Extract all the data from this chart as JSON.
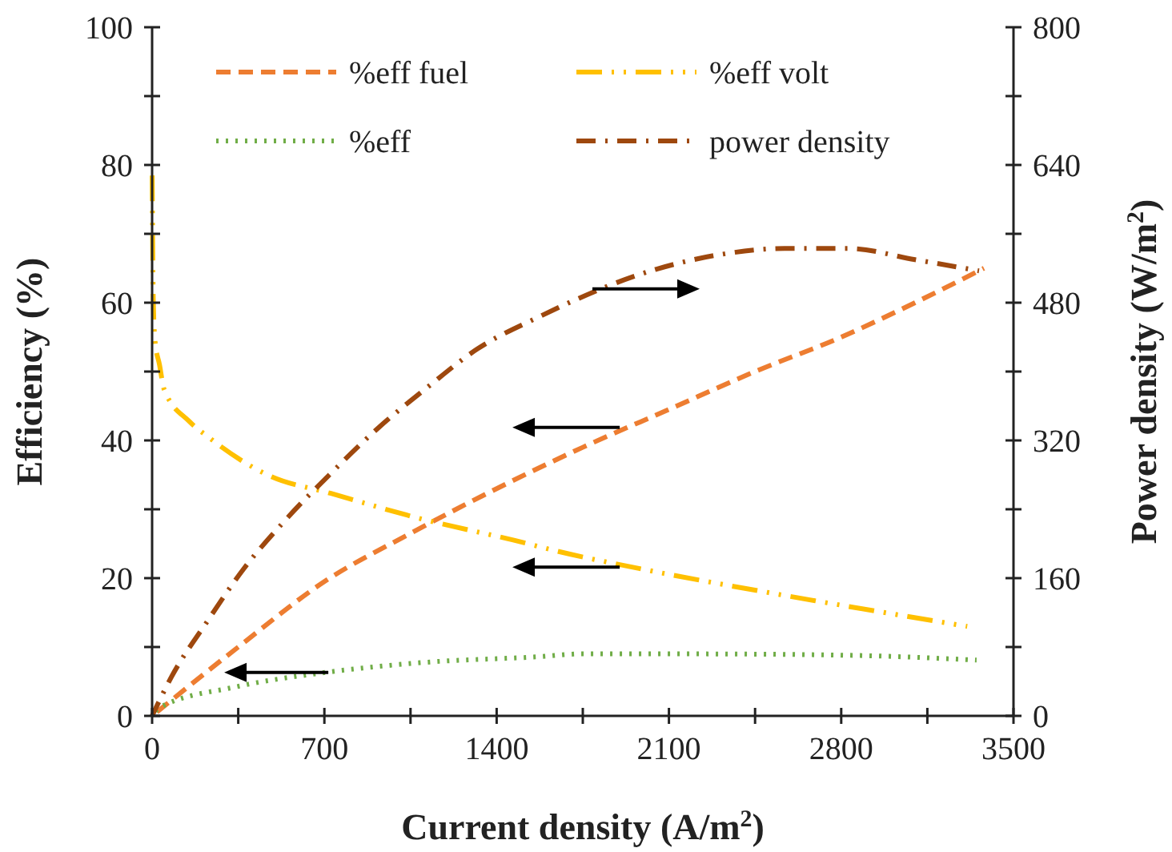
{
  "chart_data": {
    "type": "line",
    "xlabel": "Current density (A/m$^{2}$)",
    "ylabel": "Efficiency (%)",
    "y2label": "Power density (W/m$^{2}$)",
    "xlim": [
      0,
      3500
    ],
    "ylim": [
      0,
      100
    ],
    "y2lim": [
      0,
      800
    ],
    "xticks": [
      0,
      {
        "value": 350,
        "label": null
      },
      700,
      {
        "value": 1050,
        "label": null
      },
      1400,
      {
        "value": 1750,
        "label": null
      },
      2100,
      {
        "value": 2450,
        "label": null
      },
      2800,
      {
        "value": 3150,
        "label": null
      },
      3500
    ],
    "yticks": [
      0,
      {
        "value": 10,
        "label": null
      },
      20,
      {
        "value": 30,
        "label": null
      },
      40,
      {
        "value": 50,
        "label": null
      },
      60,
      {
        "value": 70,
        "label": null
      },
      80,
      {
        "value": 90,
        "label": null
      },
      100
    ],
    "y2ticks": [
      0,
      {
        "value": 80,
        "label": null
      },
      160,
      {
        "value": 240,
        "label": null
      },
      320,
      {
        "value": 400,
        "label": null
      },
      480,
      {
        "value": 560,
        "label": null
      },
      640,
      {
        "value": 720,
        "label": null
      },
      800
    ],
    "grid": false,
    "legend": "top",
    "marker": "none",
    "series": [
      {
        "name": "%eff fuel",
        "color": "#ed7d31",
        "line_style": "dashed",
        "x": [
          0,
          350,
          700,
          1050,
          1400,
          1750,
          2100,
          2450,
          2800,
          3100,
          3380
        ],
        "values": [
          0,
          10,
          19.5,
          26.5,
          33,
          39,
          44.5,
          50,
          55,
          60,
          65
        ]
      },
      {
        "name": "%eff volt",
        "color": "#ffc000",
        "line_style": "dashdotdot",
        "x": [
          0,
          5,
          12,
          30,
          49,
          150,
          228,
          475,
          727,
          1073,
          1516,
          1614,
          2050,
          2505,
          2960,
          3312
        ],
        "values": [
          80,
          60,
          54.4,
          51,
          47.4,
          42.8,
          40.5,
          34.9,
          32.3,
          28.8,
          25.1,
          24.2,
          20.9,
          17.9,
          15.1,
          13
        ]
      },
      {
        "name": "%eff",
        "color": "#70ad47",
        "line_style": "dotted",
        "x": [
          0,
          30,
          338,
          703,
          1120,
          1575,
          1745,
          2180,
          2830,
          3350
        ],
        "values": [
          0,
          1.2,
          4.2,
          6.3,
          7.8,
          8.6,
          9,
          9,
          8.8,
          8.1
        ]
      },
      {
        "name": "power density",
        "color": "#9e480e",
        "line_style": "dashdot",
        "axis": "y2",
        "x": [
          0,
          78,
          220,
          370,
          540,
          727,
          917,
          1120,
          1320,
          1568,
          2050,
          2310,
          2570,
          2830,
          3100,
          3360
        ],
        "values": [
          0,
          45,
          108,
          170,
          227,
          282,
          334,
          382,
          426,
          463,
          519,
          536,
          543,
          543,
          530,
          517
        ]
      }
    ]
  }
}
